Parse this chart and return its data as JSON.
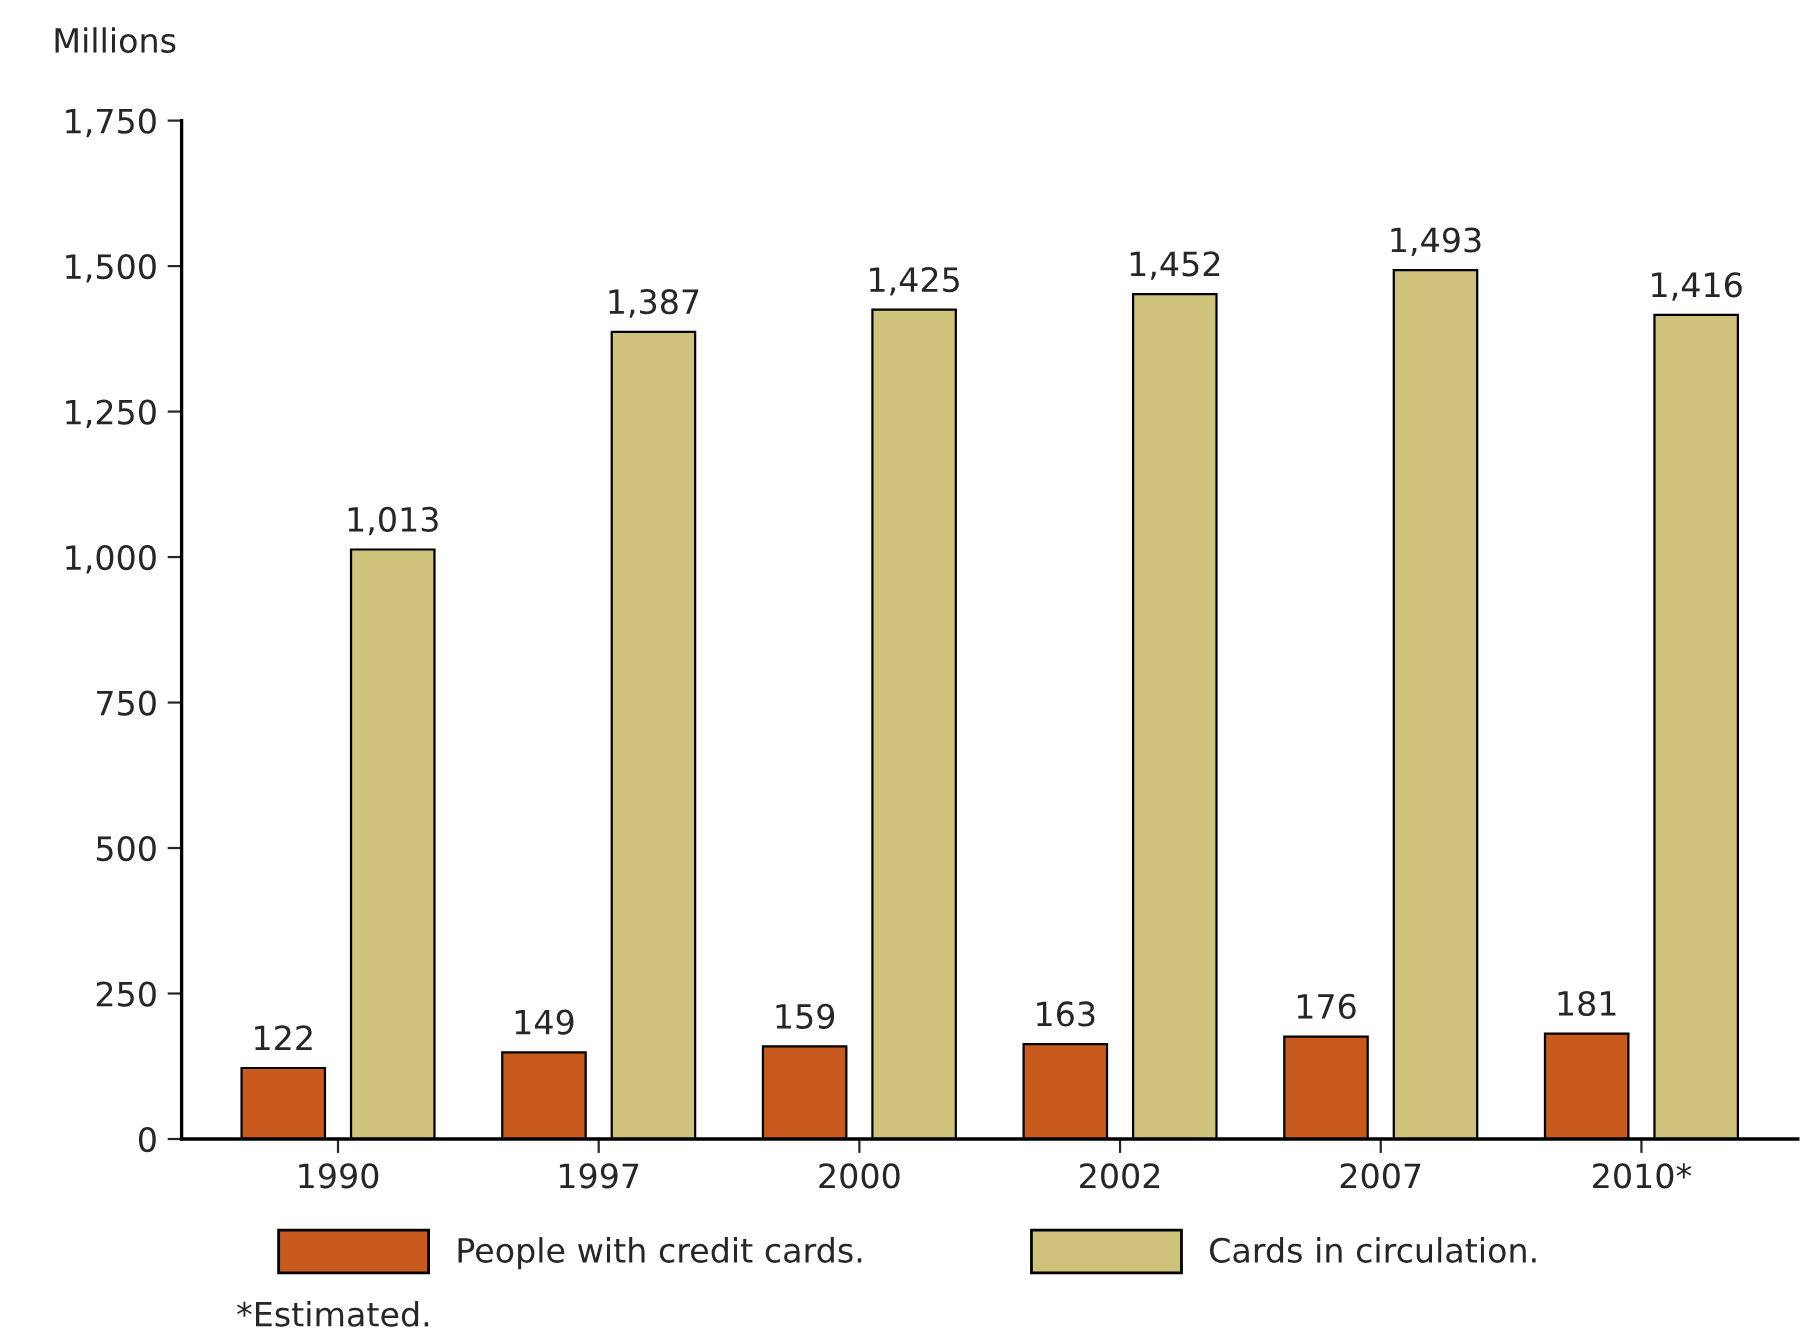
{
  "chart_data": {
    "type": "bar",
    "ylabel": "Millions",
    "categories": [
      "1990",
      "1997",
      "2000",
      "2002",
      "2007",
      "2010*"
    ],
    "series": [
      {
        "name": "People with credit cards.",
        "color": "#c85a1e",
        "values": [
          122,
          149,
          159,
          163,
          176,
          181
        ],
        "value_labels": [
          "122",
          "149",
          "159",
          "163",
          "176",
          "181"
        ]
      },
      {
        "name": "Cards in circulation.",
        "color": "#cfc27a",
        "values": [
          1013,
          1387,
          1425,
          1452,
          1493,
          1416
        ],
        "value_labels": [
          "1,013",
          "1,387",
          "1,425",
          "1,452",
          "1,493",
          "1,416"
        ]
      }
    ],
    "ylim": [
      0,
      1750
    ],
    "yticks": [
      0,
      250,
      500,
      750,
      {
        "value": 1000,
        "label": "1,000"
      },
      {
        "value": 1250,
        "label": "1,250"
      },
      {
        "value": 1500,
        "label": "1,500"
      },
      {
        "value": 1750,
        "label": "1,750"
      }
    ],
    "grid": false,
    "legend": "bottom",
    "annotations": [
      "*Estimated."
    ]
  }
}
